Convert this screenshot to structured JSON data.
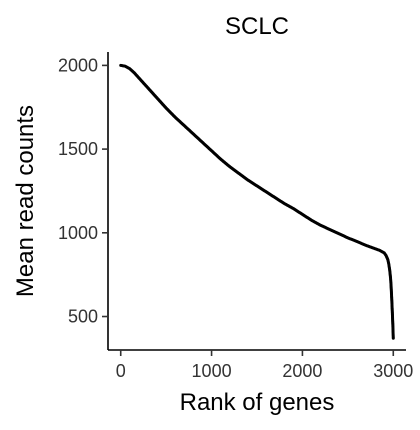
{
  "chart_data": {
    "type": "scatter",
    "title": "SCLC",
    "xlabel": "Rank of genes",
    "ylabel": "Mean read counts",
    "xlim": [
      -140,
      3140
    ],
    "ylim": [
      300,
      2080
    ],
    "x_ticks": [
      0,
      1000,
      2000,
      3000
    ],
    "y_ticks": [
      500,
      1000,
      1500,
      2000
    ],
    "grid": false,
    "legend": "none",
    "point_color": "#000000",
    "series": [
      {
        "x": [
          0,
          50,
          100,
          150,
          200,
          250,
          300,
          400,
          500,
          600,
          700,
          800,
          900,
          1000,
          1100,
          1200,
          1300,
          1400,
          1500,
          1600,
          1700,
          1800,
          1900,
          2000,
          2100,
          2200,
          2300,
          2400,
          2500,
          2600,
          2700,
          2800,
          2850,
          2900,
          2920,
          2940,
          2950,
          2960,
          2970,
          2975,
          2980,
          2985,
          2990,
          2995,
          3000
        ],
        "y": [
          2000,
          1995,
          1980,
          1955,
          1925,
          1895,
          1865,
          1805,
          1745,
          1690,
          1640,
          1590,
          1540,
          1490,
          1440,
          1395,
          1355,
          1315,
          1280,
          1245,
          1210,
          1175,
          1145,
          1110,
          1075,
          1045,
          1020,
          995,
          970,
          948,
          925,
          905,
          895,
          880,
          865,
          840,
          815,
          780,
          730,
          690,
          640,
          580,
          520,
          450,
          370
        ]
      }
    ]
  }
}
